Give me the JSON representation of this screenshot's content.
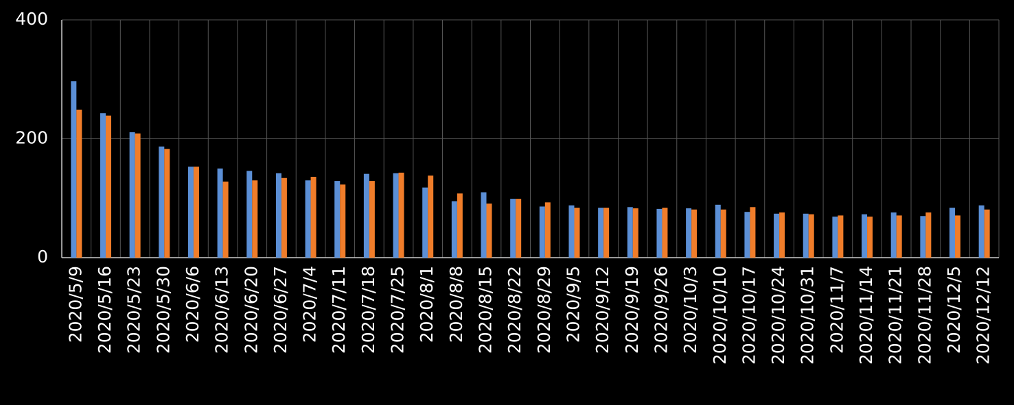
{
  "chart_data": {
    "type": "bar",
    "categories": [
      "2020/5/9",
      "2020/5/16",
      "2020/5/23",
      "2020/5/30",
      "2020/6/6",
      "2020/6/13",
      "2020/6/20",
      "2020/6/27",
      "2020/7/4",
      "2020/7/11",
      "2020/7/18",
      "2020/7/25",
      "2020/8/1",
      "2020/8/8",
      "2020/8/15",
      "2020/8/22",
      "2020/8/29",
      "2020/9/5",
      "2020/9/12",
      "2020/9/19",
      "2020/9/26",
      "2020/10/3",
      "2020/10/10",
      "2020/10/17",
      "2020/10/24",
      "2020/10/31",
      "2020/11/7",
      "2020/11/14",
      "2020/11/21",
      "2020/11/28",
      "2020/12/5",
      "2020/12/12"
    ],
    "series": [
      {
        "color": "#5b8fd6",
        "values": [
          297,
          243,
          211,
          187,
          153,
          150,
          146,
          142,
          130,
          129,
          141,
          142,
          118,
          95,
          110,
          99,
          86,
          88,
          84,
          85,
          82,
          83,
          89,
          77,
          74,
          74,
          69,
          73,
          76,
          70,
          84,
          88
        ]
      },
      {
        "color": "#f07d2a",
        "values": [
          249,
          239,
          209,
          183,
          153,
          128,
          130,
          134,
          136,
          123,
          129,
          143,
          138,
          108,
          91,
          99,
          93,
          84,
          84,
          83,
          84,
          81,
          81,
          85,
          76,
          73,
          71,
          69,
          71,
          76,
          71,
          81
        ]
      }
    ],
    "ylim": [
      0,
      400
    ],
    "yticks": [
      0,
      200,
      400
    ],
    "grid": true
  }
}
